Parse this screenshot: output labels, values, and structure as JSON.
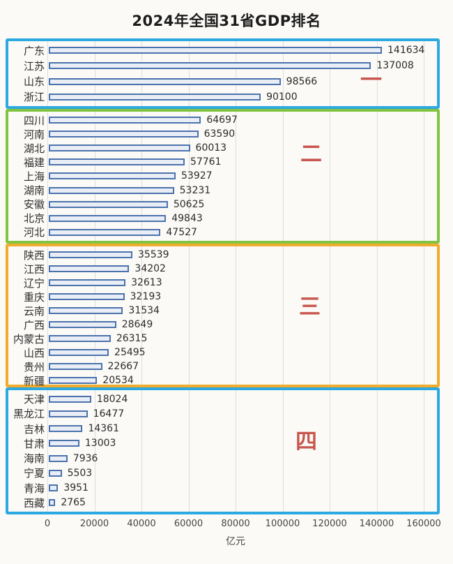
{
  "title": "2024年全国31省GDP排名",
  "colors": {
    "tier1_box": "#2da9e1",
    "tier2_box": "#82c441",
    "tier3_box": "#f0ac2d",
    "tier4_box": "#2da9e1",
    "bar_border": "#4b72ad",
    "bar_fill": "#e9eef6",
    "rank_marker": "#c8564e"
  },
  "chart_data": {
    "type": "bar",
    "orientation": "horizontal",
    "title": "2024年全国31省GDP排名",
    "xlabel": "亿元",
    "xlim": [
      0,
      160000
    ],
    "x_ticks": [
      0,
      20000,
      40000,
      60000,
      80000,
      100000,
      120000,
      140000,
      160000
    ],
    "grid": true,
    "tiers": [
      {
        "rank_marker": "一",
        "box_color": "#2da9e1",
        "provinces": [
          {
            "name": "广东",
            "value": 141634
          },
          {
            "name": "江苏",
            "value": 137008
          },
          {
            "name": "山东",
            "value": 98566
          },
          {
            "name": "浙江",
            "value": 90100
          }
        ]
      },
      {
        "rank_marker": "二",
        "box_color": "#82c441",
        "provinces": [
          {
            "name": "四川",
            "value": 64697
          },
          {
            "name": "河南",
            "value": 63590
          },
          {
            "name": "湖北",
            "value": 60013
          },
          {
            "name": "福建",
            "value": 57761
          },
          {
            "name": "上海",
            "value": 53927
          },
          {
            "name": "湖南",
            "value": 53231
          },
          {
            "name": "安徽",
            "value": 50625
          },
          {
            "name": "北京",
            "value": 49843
          },
          {
            "name": "河北",
            "value": 47527
          }
        ]
      },
      {
        "rank_marker": "三",
        "box_color": "#f0ac2d",
        "provinces": [
          {
            "name": "陕西",
            "value": 35539
          },
          {
            "name": "江西",
            "value": 34202
          },
          {
            "name": "辽宁",
            "value": 32613
          },
          {
            "name": "重庆",
            "value": 32193
          },
          {
            "name": "云南",
            "value": 31534
          },
          {
            "name": "广西",
            "value": 28649
          },
          {
            "name": "内蒙古",
            "value": 26315
          },
          {
            "name": "山西",
            "value": 25495
          },
          {
            "name": "贵州",
            "value": 22667
          },
          {
            "name": "新疆",
            "value": 20534
          }
        ]
      },
      {
        "rank_marker": "四",
        "box_color": "#2da9e1",
        "provinces": [
          {
            "name": "天津",
            "value": 18024
          },
          {
            "name": "黑龙江",
            "value": 16477
          },
          {
            "name": "吉林",
            "value": 14361
          },
          {
            "name": "甘肃",
            "value": 13003
          },
          {
            "name": "海南",
            "value": 7936
          },
          {
            "name": "宁夏",
            "value": 5503
          },
          {
            "name": "青海",
            "value": 3951
          },
          {
            "name": "西藏",
            "value": 2765
          }
        ]
      }
    ]
  }
}
